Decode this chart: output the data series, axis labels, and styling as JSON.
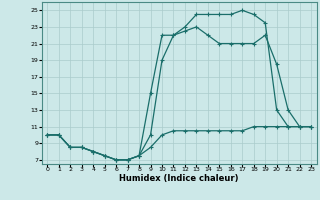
{
  "xlabel": "Humidex (Indice chaleur)",
  "background_color": "#cce8e8",
  "grid_color": "#aacccc",
  "line_color": "#1a6e6a",
  "xlim": [
    -0.5,
    23.5
  ],
  "ylim": [
    6.5,
    26.0
  ],
  "yticks": [
    7,
    9,
    11,
    13,
    15,
    17,
    19,
    21,
    23,
    25
  ],
  "xticks": [
    0,
    1,
    2,
    3,
    4,
    5,
    6,
    7,
    8,
    9,
    10,
    11,
    12,
    13,
    14,
    15,
    16,
    17,
    18,
    19,
    20,
    21,
    22,
    23
  ],
  "line_min_x": [
    0,
    1,
    2,
    3,
    4,
    5,
    6,
    7,
    8,
    9,
    10,
    11,
    12,
    13,
    14,
    15,
    16,
    17,
    18,
    19,
    20,
    21,
    22,
    23
  ],
  "line_min_y": [
    10,
    10,
    8.5,
    8.5,
    8,
    7.5,
    7,
    7,
    7.5,
    8.5,
    10,
    10.5,
    10.5,
    10.5,
    10.5,
    10.5,
    10.5,
    10.5,
    11,
    11,
    11,
    11,
    11,
    11
  ],
  "line_max_x": [
    0,
    1,
    2,
    3,
    4,
    5,
    6,
    7,
    8,
    9,
    10,
    11,
    12,
    13,
    14,
    15,
    16,
    17,
    18,
    19,
    20,
    21,
    22,
    23
  ],
  "line_max_y": [
    10,
    10,
    8.5,
    8.5,
    8,
    7.5,
    7,
    7,
    7.5,
    15,
    22,
    22,
    23,
    24.5,
    24.5,
    24.5,
    24.5,
    25,
    24.5,
    23.5,
    13,
    11,
    11,
    11
  ],
  "line_mean_x": [
    0,
    1,
    2,
    3,
    4,
    5,
    6,
    7,
    8,
    9,
    10,
    11,
    12,
    13,
    14,
    15,
    16,
    17,
    18,
    19,
    20,
    21,
    22,
    23
  ],
  "line_mean_y": [
    10,
    10,
    8.5,
    8.5,
    8,
    7.5,
    7,
    7,
    7.5,
    10,
    19,
    22,
    22.5,
    23,
    22,
    21,
    21,
    21,
    21,
    22,
    18.5,
    13,
    11,
    11
  ]
}
